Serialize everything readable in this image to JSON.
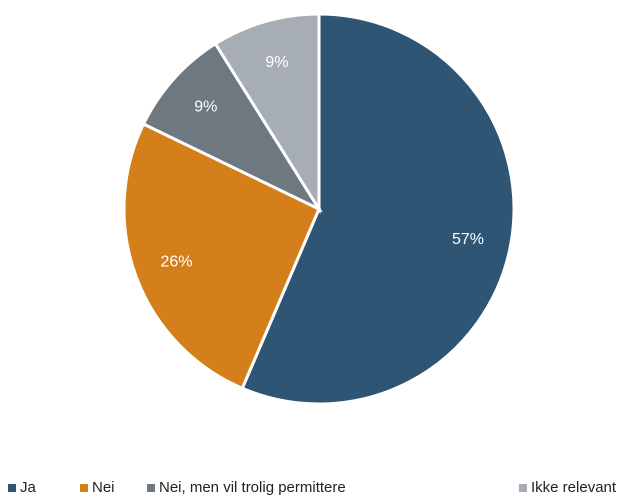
{
  "chart_data": {
    "type": "pie",
    "categories": [
      "Ja",
      "Nei",
      "Nei, men vil trolig permittere",
      "Ikke relevant"
    ],
    "values": [
      57,
      26,
      9,
      9
    ],
    "value_labels": [
      "57%",
      "26%",
      "9%",
      "9%"
    ],
    "colors": [
      "#2f5574",
      "#d57f1a",
      "#6e7880",
      "#a6adb4"
    ],
    "legend": "bottom"
  }
}
